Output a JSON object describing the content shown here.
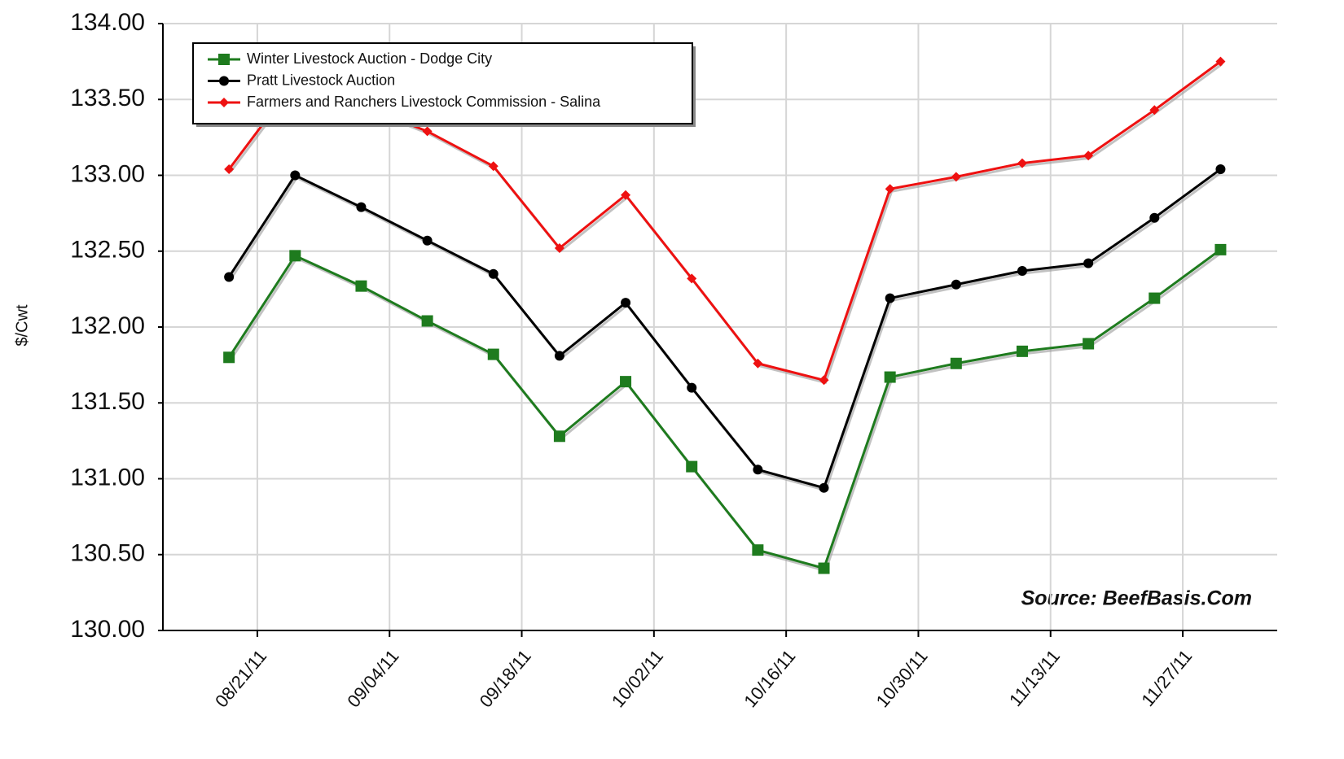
{
  "chart_data": {
    "type": "line",
    "y_label": "$/Cwt",
    "annotation": "Source: BeefBasis.Com",
    "x": [
      "08/18/11",
      "08/25/11",
      "09/01/11",
      "09/08/11",
      "09/15/11",
      "09/22/11",
      "09/29/11",
      "10/06/11",
      "10/13/11",
      "10/20/11",
      "10/27/11",
      "11/03/11",
      "11/10/11",
      "11/17/11",
      "11/24/11",
      "12/01/11"
    ],
    "series": [
      {
        "name": "Winter Livestock Auction - Dodge City",
        "color": "#1e7b1e",
        "marker": "square",
        "values": [
          131.8,
          132.47,
          132.27,
          132.04,
          131.82,
          131.28,
          131.64,
          131.08,
          130.53,
          130.41,
          131.67,
          131.76,
          131.84,
          131.89,
          132.19,
          132.51
        ]
      },
      {
        "name": "Pratt Livestock Auction",
        "color": "#000000",
        "marker": "circle",
        "values": [
          132.33,
          133.0,
          132.79,
          132.57,
          132.35,
          131.81,
          132.16,
          131.6,
          131.06,
          130.94,
          132.19,
          132.28,
          132.37,
          132.42,
          132.72,
          133.04
        ]
      },
      {
        "name": "Farmers and Ranchers Livestock Commission - Salina",
        "color": "#ee1111",
        "marker": "diamond",
        "values": [
          133.04,
          133.62,
          133.46,
          133.29,
          133.06,
          132.52,
          132.87,
          132.32,
          131.76,
          131.65,
          132.91,
          132.99,
          133.08,
          133.13,
          133.43,
          133.75
        ]
      }
    ],
    "xlim": [
      "08/11/11",
      "12/07/11"
    ],
    "xticks": [
      "08/21/11",
      "09/04/11",
      "09/18/11",
      "10/02/11",
      "10/16/11",
      "10/30/11",
      "11/13/11",
      "11/27/11"
    ],
    "ylim": [
      130,
      134
    ],
    "yticks": [
      {
        "value": 130,
        "label": "130.00"
      },
      {
        "value": 130.5,
        "label": "130.50"
      },
      {
        "value": 131,
        "label": "131.00"
      },
      {
        "value": 131.5,
        "label": "131.50"
      },
      {
        "value": 132,
        "label": "132.00"
      },
      {
        "value": 132.5,
        "label": "132.50"
      },
      {
        "value": 133,
        "label": "133.00"
      },
      {
        "value": 133.5,
        "label": "133.50"
      },
      {
        "value": 134,
        "label": "134.00"
      }
    ],
    "grid": true,
    "legend": "upper left"
  }
}
